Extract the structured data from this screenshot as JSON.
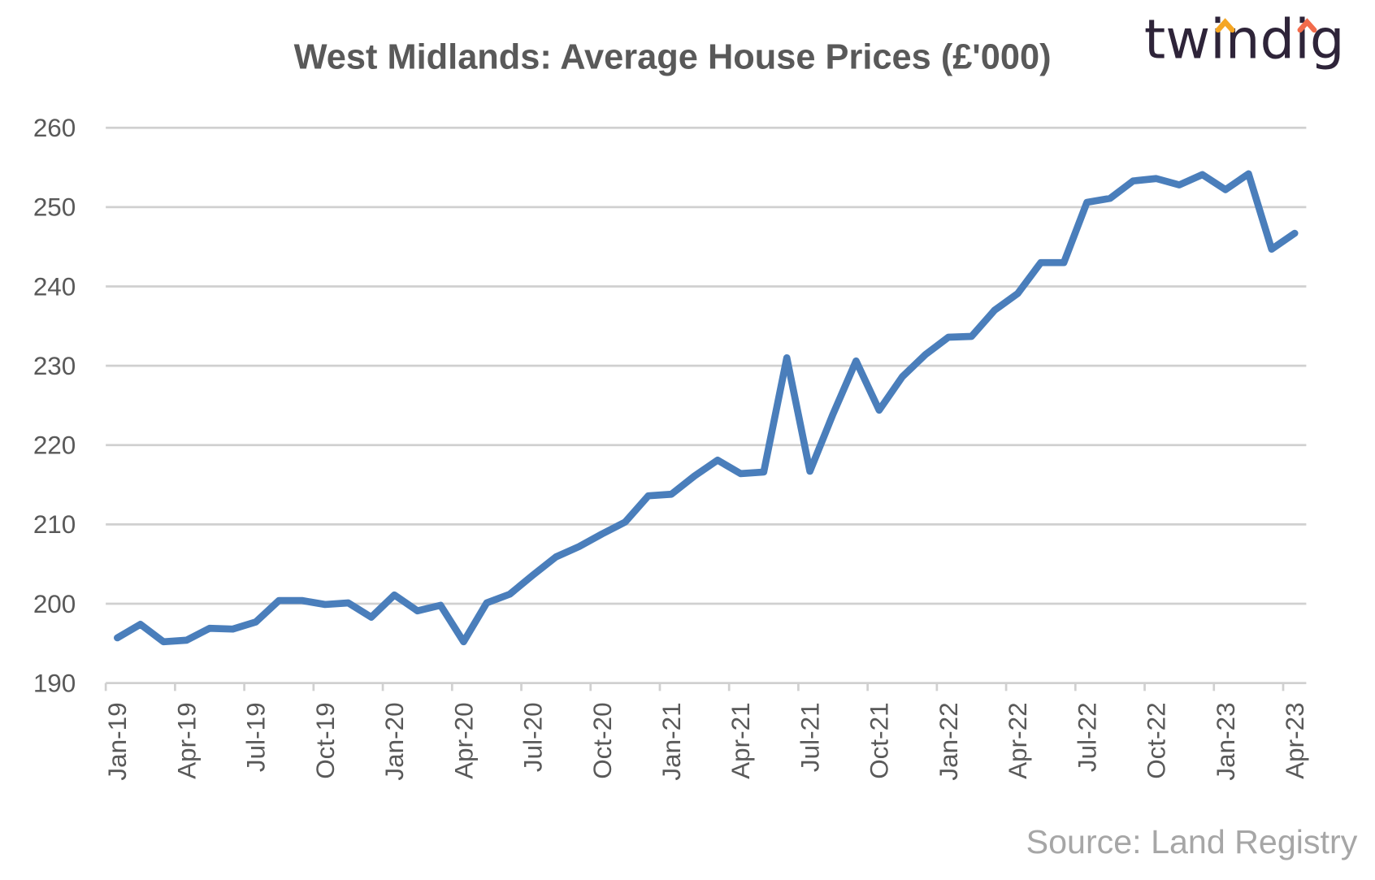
{
  "chart_data": {
    "type": "line",
    "title": "West Midlands:  Average House Prices (£'000)",
    "xlabel": "",
    "ylabel": "",
    "ylim": [
      190,
      260
    ],
    "yticks": [
      190,
      200,
      210,
      220,
      230,
      240,
      250,
      260
    ],
    "grid": true,
    "legend": "none",
    "x": [
      "Jan-19",
      "Feb-19",
      "Mar-19",
      "Apr-19",
      "May-19",
      "Jun-19",
      "Jul-19",
      "Aug-19",
      "Sep-19",
      "Oct-19",
      "Nov-19",
      "Dec-19",
      "Jan-20",
      "Feb-20",
      "Mar-20",
      "Apr-20",
      "May-20",
      "Jun-20",
      "Jul-20",
      "Aug-20",
      "Sep-20",
      "Oct-20",
      "Nov-20",
      "Dec-20",
      "Jan-21",
      "Feb-21",
      "Mar-21",
      "Apr-21",
      "May-21",
      "Jun-21",
      "Jul-21",
      "Aug-21",
      "Sep-21",
      "Oct-21",
      "Nov-21",
      "Dec-21",
      "Jan-22",
      "Feb-22",
      "Mar-22",
      "Apr-22",
      "May-22",
      "Jun-22",
      "Jul-22",
      "Aug-22",
      "Sep-22",
      "Oct-22",
      "Nov-22",
      "Dec-22",
      "Jan-23",
      "Feb-23",
      "Mar-23",
      "Apr-23"
    ],
    "xtick_labels": [
      "Jan-19",
      "Apr-19",
      "Jul-19",
      "Oct-19",
      "Jan-20",
      "Apr-20",
      "Jul-20",
      "Oct-20",
      "Jan-21",
      "Apr-21",
      "Jul-21",
      "Oct-21",
      "Jan-22",
      "Apr-22",
      "Jul-22",
      "Oct-22",
      "Jan-23",
      "Apr-23"
    ],
    "series": [
      {
        "color": "#4a7ebb",
        "values": [
          195.7,
          197.4,
          195.2,
          195.4,
          196.9,
          196.8,
          197.7,
          200.4,
          200.4,
          199.9,
          200.1,
          198.3,
          201.1,
          199.1,
          199.8,
          195.2,
          200.1,
          201.2,
          203.6,
          205.9,
          207.2,
          208.8,
          210.3,
          213.6,
          213.8,
          216.1,
          218.1,
          216.4,
          216.6,
          231.0,
          216.7,
          223.9,
          230.6,
          224.4,
          228.6,
          231.4,
          233.6,
          233.7,
          237.0,
          239.1,
          243.0,
          243.0,
          250.6,
          251.1,
          253.3,
          253.6,
          252.8,
          254.1,
          252.2,
          254.2,
          244.7,
          246.7
        ]
      }
    ]
  },
  "source": "Source: Land Registry",
  "logo": {
    "text": "twindig",
    "accent_1": "#f5a623",
    "accent_2": "#f26b4b",
    "color": "#2e2439"
  }
}
